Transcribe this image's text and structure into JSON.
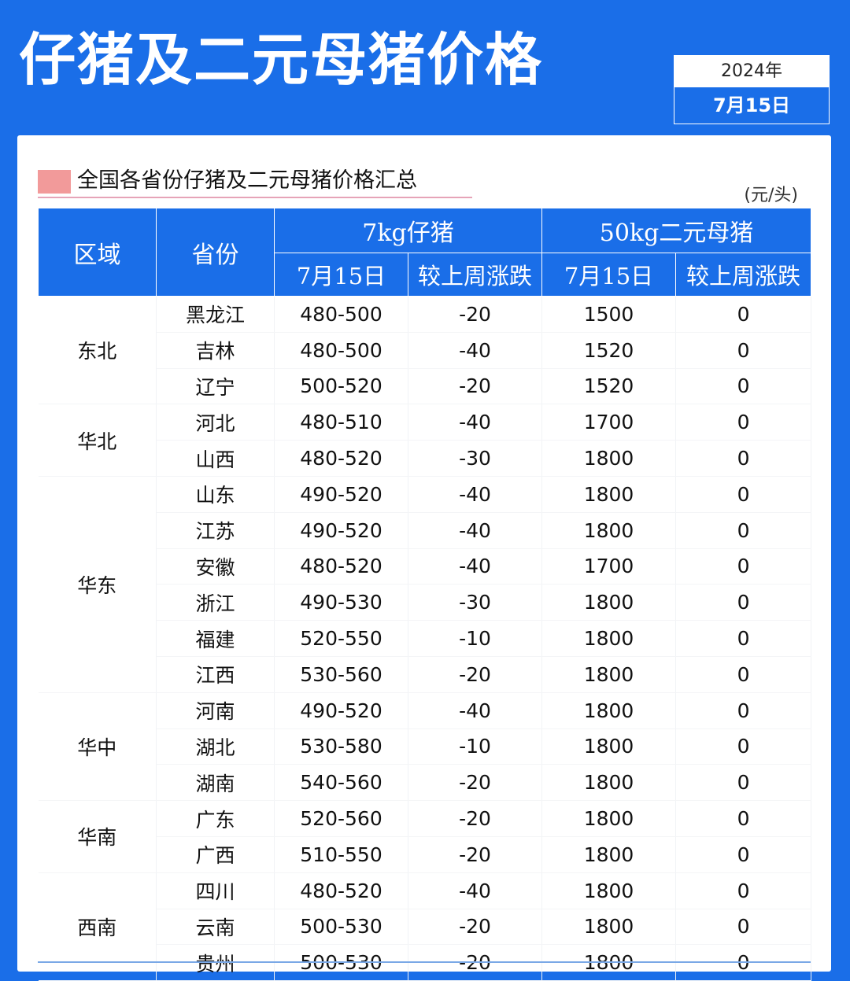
{
  "header": {
    "title": "仔猪及二元母猪价格",
    "year": "2024年",
    "date": "7月15日"
  },
  "card": {
    "subtitle": "全国各省份仔猪及二元母猪价格汇总",
    "unit": "(元/头)"
  },
  "table": {
    "headers": {
      "region": "区域",
      "province": "省份",
      "piglet_group": "7kg仔猪",
      "sow_group": "50kg二元母猪",
      "piglet_date": "7月15日",
      "piglet_change": "较上周涨跌",
      "sow_date": "7月15日",
      "sow_change": "较上周涨跌"
    },
    "rows": [
      {
        "region": "东北",
        "province": "黑龙江",
        "piglet": "480-500",
        "piglet_change": "-20",
        "sow": "1500",
        "sow_change": "0"
      },
      {
        "region": "",
        "province": "吉林",
        "piglet": "480-500",
        "piglet_change": "-40",
        "sow": "1520",
        "sow_change": "0"
      },
      {
        "region": "",
        "province": "辽宁",
        "piglet": "500-520",
        "piglet_change": "-20",
        "sow": "1520",
        "sow_change": "0"
      },
      {
        "region": "华北",
        "province": "河北",
        "piglet": "480-510",
        "piglet_change": "-40",
        "sow": "1700",
        "sow_change": "0"
      },
      {
        "region": "",
        "province": "山西",
        "piglet": "480-520",
        "piglet_change": "-30",
        "sow": "1800",
        "sow_change": "0"
      },
      {
        "region": "华东",
        "province": "山东",
        "piglet": "490-520",
        "piglet_change": "-40",
        "sow": "1800",
        "sow_change": "0"
      },
      {
        "region": "",
        "province": "江苏",
        "piglet": "490-520",
        "piglet_change": "-40",
        "sow": "1800",
        "sow_change": "0"
      },
      {
        "region": "",
        "province": "安徽",
        "piglet": "480-520",
        "piglet_change": "-40",
        "sow": "1700",
        "sow_change": "0"
      },
      {
        "region": "",
        "province": "浙江",
        "piglet": "490-530",
        "piglet_change": "-30",
        "sow": "1800",
        "sow_change": "0"
      },
      {
        "region": "",
        "province": "福建",
        "piglet": "520-550",
        "piglet_change": "-10",
        "sow": "1800",
        "sow_change": "0"
      },
      {
        "region": "",
        "province": "江西",
        "piglet": "530-560",
        "piglet_change": "-20",
        "sow": "1800",
        "sow_change": "0"
      },
      {
        "region": "华中",
        "province": "河南",
        "piglet": "490-520",
        "piglet_change": "-40",
        "sow": "1800",
        "sow_change": "0"
      },
      {
        "region": "",
        "province": "湖北",
        "piglet": "530-580",
        "piglet_change": "-10",
        "sow": "1800",
        "sow_change": "0"
      },
      {
        "region": "",
        "province": "湖南",
        "piglet": "540-560",
        "piglet_change": "-20",
        "sow": "1800",
        "sow_change": "0"
      },
      {
        "region": "华南",
        "province": "广东",
        "piglet": "520-560",
        "piglet_change": "-20",
        "sow": "1800",
        "sow_change": "0"
      },
      {
        "region": "",
        "province": "广西",
        "piglet": "510-550",
        "piglet_change": "-20",
        "sow": "1800",
        "sow_change": "0"
      },
      {
        "region": "西南",
        "province": "四川",
        "piglet": "480-520",
        "piglet_change": "-40",
        "sow": "1800",
        "sow_change": "0"
      },
      {
        "region": "",
        "province": "云南",
        "piglet": "500-530",
        "piglet_change": "-20",
        "sow": "1800",
        "sow_change": "0"
      },
      {
        "region": "",
        "province": "贵州",
        "piglet": "500-530",
        "piglet_change": "-20",
        "sow": "1800",
        "sow_change": "0"
      }
    ]
  },
  "colors": {
    "brand_blue": "#1a6ee8",
    "change_teal": "#21b8b0",
    "accent_pink": "#f29a9a"
  }
}
